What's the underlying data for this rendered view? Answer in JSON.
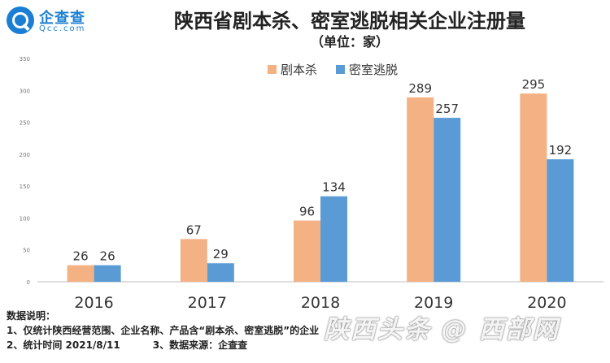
{
  "brand": {
    "name": "企查查",
    "domain": "Qcc.com"
  },
  "chart_data": {
    "type": "bar",
    "title": "陕西省剧本杀、密室逃脱相关企业注册量",
    "subtitle": "（单位：家）",
    "categories": [
      "2016",
      "2017",
      "2018",
      "2019",
      "2020"
    ],
    "series": [
      {
        "name": "剧本杀",
        "values": [
          26,
          67,
          96,
          289,
          295
        ],
        "color": "#f4b183"
      },
      {
        "name": "密室逃脱",
        "values": [
          26,
          29,
          134,
          257,
          192
        ],
        "color": "#5b9bd5"
      }
    ],
    "yticks": [
      "0",
      "50",
      "100",
      "150",
      "200",
      "250",
      "300",
      "350"
    ],
    "ylim": [
      0,
      350
    ],
    "grid": false,
    "legend": "top-right"
  },
  "notes": {
    "heading": "数据说明：",
    "line1": "1、仅统计陕西经营范围、企业名称、产品含“剧本杀、密室逃脱”的企业",
    "line2_a": "2、统计时间 2021/8/11",
    "line2_b": "3、数据来源：企查查"
  },
  "watermark": "陕西头条 @ 西部网"
}
